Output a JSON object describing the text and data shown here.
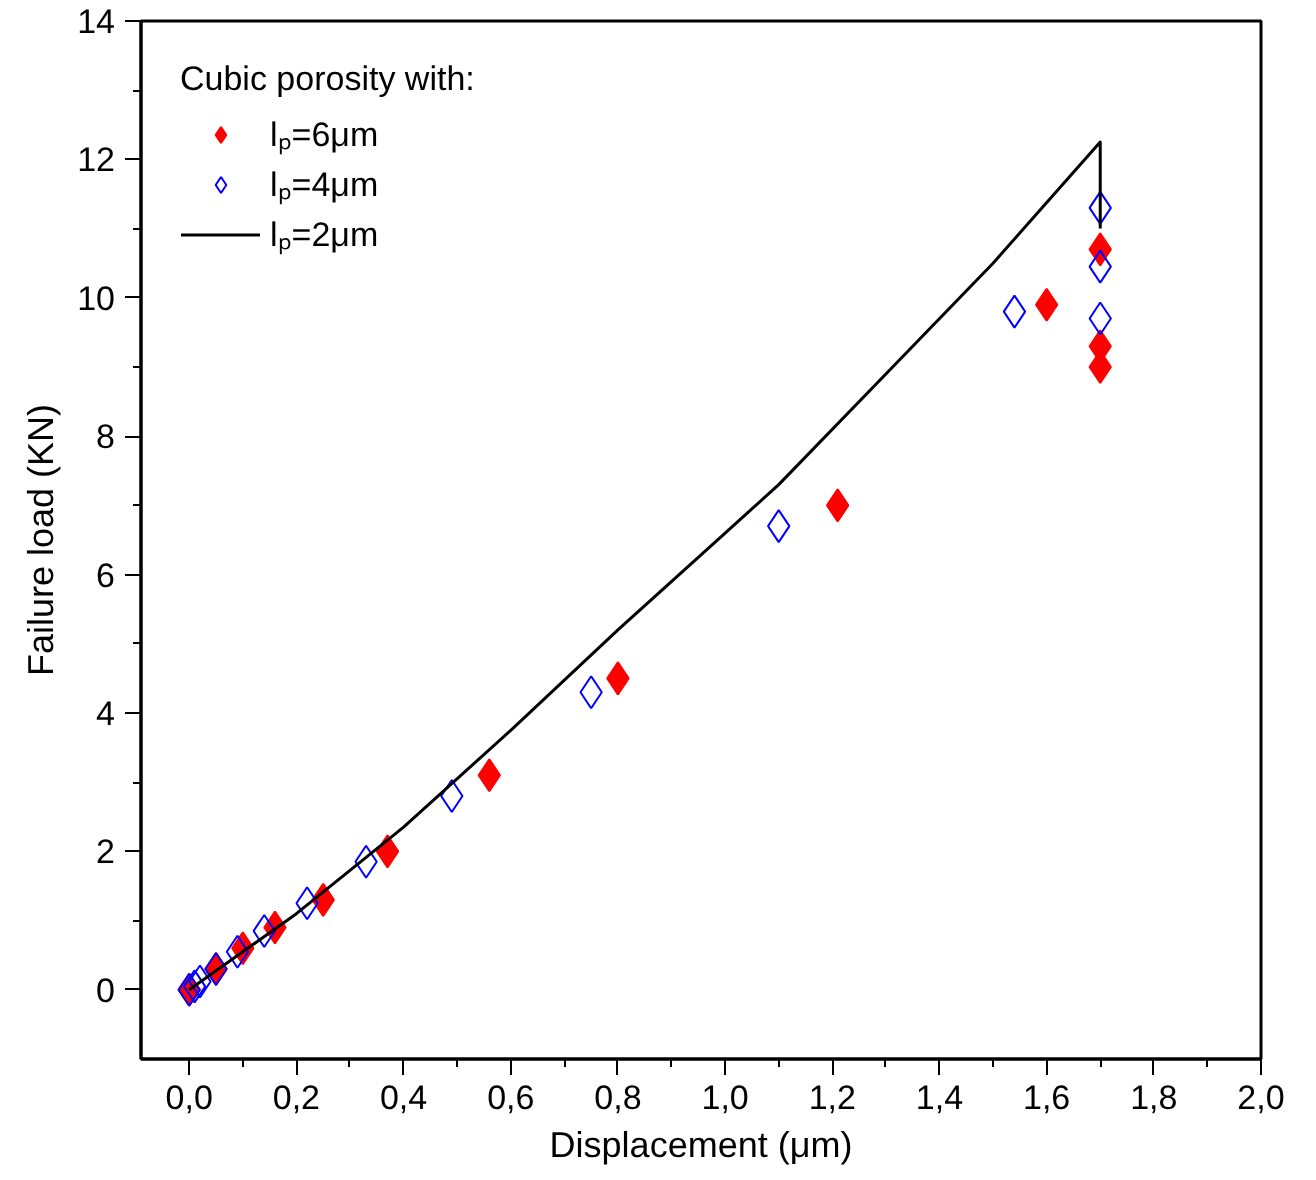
{
  "chart_data": {
    "type": "scatter",
    "xlabel": "Displacement (μm)",
    "ylabel": "Failure load (KN)",
    "legend_title": "Cubic porosity with:",
    "legend": "top left",
    "grid": false,
    "xlim": [
      -0.09,
      2.0
    ],
    "ylim": [
      -1,
      14
    ],
    "xticks": [
      {
        "value": 0,
        "label": "0,0"
      },
      {
        "value": 0.2,
        "label": "0,2"
      },
      {
        "value": 0.4,
        "label": "0,4"
      },
      {
        "value": 0.6,
        "label": "0,6"
      },
      {
        "value": 0.8,
        "label": "0,8"
      },
      {
        "value": 1.0,
        "label": "1,0"
      },
      {
        "value": 1.2,
        "label": "1,2"
      },
      {
        "value": 1.4,
        "label": "1,4"
      },
      {
        "value": 1.6,
        "label": "1,6"
      },
      {
        "value": 1.8,
        "label": "1,8"
      },
      {
        "value": 2.0,
        "label": "2,0"
      }
    ],
    "yticks": [
      0,
      2,
      4,
      6,
      8,
      10,
      12,
      14
    ],
    "series": [
      {
        "name": "lₚ=6μm",
        "marker": "diamond",
        "color": "#ff0000",
        "x": [
          0,
          0.05,
          0.1,
          0.16,
          0.25,
          0.37,
          0.56,
          0.8,
          1.21,
          1.6,
          1.7,
          1.7,
          1.7
        ],
        "values": [
          0,
          0.3,
          0.6,
          0.9,
          1.3,
          2.0,
          3.1,
          4.5,
          7.0,
          9.9,
          10.7,
          9.3,
          9.0
        ]
      },
      {
        "name": "lₚ=4μm",
        "marker": "diamond_open",
        "color": "#0000ff",
        "x": [
          0,
          0.01,
          0.02,
          0.05,
          0.09,
          0.14,
          0.22,
          0.33,
          0.49,
          0.75,
          1.1,
          1.54,
          1.7,
          1.7,
          1.7
        ],
        "values": [
          0,
          0.05,
          0.12,
          0.3,
          0.55,
          0.85,
          1.25,
          1.85,
          2.8,
          4.3,
          6.7,
          9.8,
          11.3,
          10.45,
          9.7
        ]
      },
      {
        "name": "lₚ=2μm",
        "type": "line",
        "marker": "none",
        "color": "#000000",
        "x": [
          0,
          0.2,
          0.4,
          0.6,
          0.8,
          1.0,
          1.1,
          1.3,
          1.5,
          1.7,
          1.7
        ],
        "values": [
          0,
          1.1,
          2.35,
          3.75,
          5.2,
          6.6,
          7.3,
          8.9,
          10.5,
          12.25,
          11.0
        ]
      }
    ]
  }
}
